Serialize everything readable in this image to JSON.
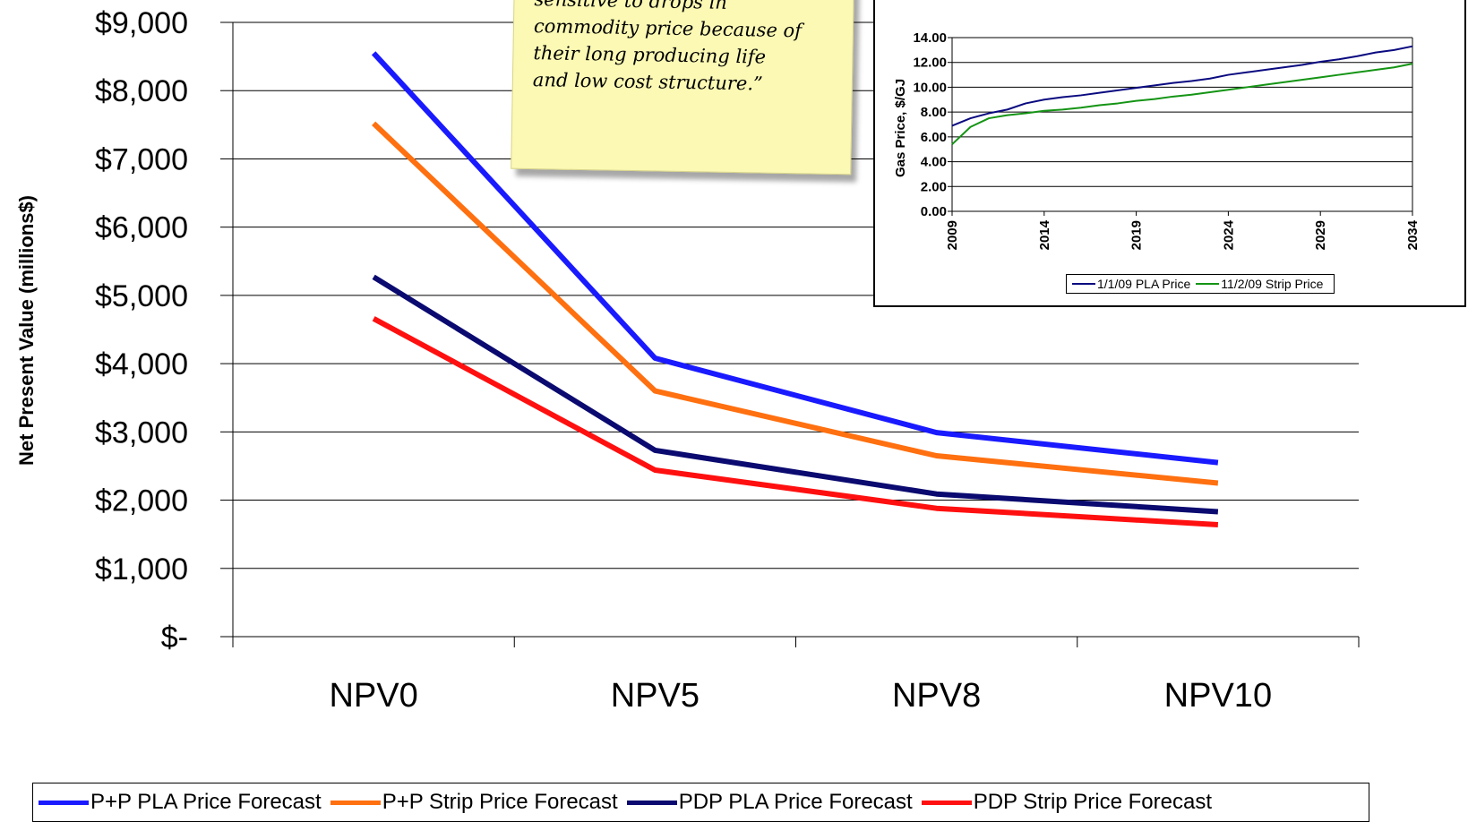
{
  "chart_data": [
    {
      "type": "line",
      "title": "",
      "xlabel": "",
      "ylabel": "Net Present Value (millions$)",
      "categories": [
        "NPV0",
        "NPV5",
        "NPV8",
        "NPV10"
      ],
      "y_ticks": [
        "$-",
        "$1,000",
        "$2,000",
        "$3,000",
        "$4,000",
        "$5,000",
        "$6,000",
        "$7,000",
        "$8,000",
        "$9,000"
      ],
      "ylim": [
        0,
        9000
      ],
      "grid": true,
      "legend_position": "bottom",
      "series": [
        {
          "name": "P+P PLA Price Forecast",
          "color": "#1a1aff",
          "values": [
            8550,
            4080,
            2990,
            2550
          ]
        },
        {
          "name": "P+P Strip Price Forecast",
          "color": "#ff7010",
          "values": [
            7520,
            3600,
            2650,
            2250
          ]
        },
        {
          "name": "PDP PLA Price Forecast",
          "color": "#0a0a70",
          "values": [
            5270,
            2730,
            2090,
            1830
          ]
        },
        {
          "name": "PDP Strip Price Forecast",
          "color": "#ff1010",
          "values": [
            4660,
            2440,
            1880,
            1640
          ]
        }
      ]
    },
    {
      "type": "line",
      "title": "",
      "xlabel": "",
      "ylabel": "Gas Price, $/GJ",
      "x_ticks": [
        "2009",
        "2014",
        "2019",
        "2024",
        "2029",
        "2034"
      ],
      "y_ticks": [
        "0.00",
        "2.00",
        "4.00",
        "6.00",
        "8.00",
        "10.00",
        "12.00",
        "14.00"
      ],
      "xlim": [
        2009,
        2034
      ],
      "ylim": [
        0,
        14
      ],
      "grid": true,
      "legend_position": "bottom",
      "series": [
        {
          "name": "1/1/09 PLA Price",
          "color": "#0a0a80",
          "x": [
            2009,
            2010,
            2011,
            2012,
            2013,
            2014,
            2015,
            2016,
            2017,
            2018,
            2019,
            2020,
            2021,
            2022,
            2023,
            2024,
            2025,
            2026,
            2027,
            2028,
            2029,
            2030,
            2031,
            2032,
            2033,
            2034
          ],
          "values": [
            6.9,
            7.5,
            7.9,
            8.2,
            8.7,
            9.0,
            9.2,
            9.35,
            9.55,
            9.75,
            9.95,
            10.15,
            10.35,
            10.5,
            10.7,
            11.0,
            11.2,
            11.4,
            11.6,
            11.8,
            12.05,
            12.25,
            12.5,
            12.8,
            13.0,
            13.3
          ]
        },
        {
          "name": "11/2/09 Strip Price",
          "color": "#149414",
          "x": [
            2009,
            2010,
            2011,
            2012,
            2013,
            2014,
            2015,
            2016,
            2017,
            2018,
            2019,
            2020,
            2021,
            2022,
            2023,
            2024,
            2025,
            2026,
            2027,
            2028,
            2029,
            2030,
            2031,
            2032,
            2033,
            2034
          ],
          "values": [
            5.4,
            6.8,
            7.5,
            7.75,
            7.9,
            8.1,
            8.2,
            8.35,
            8.55,
            8.7,
            8.9,
            9.05,
            9.25,
            9.4,
            9.6,
            9.8,
            10.0,
            10.2,
            10.4,
            10.6,
            10.8,
            11.0,
            11.2,
            11.4,
            11.6,
            11.9
          ]
        }
      ]
    }
  ],
  "note": {
    "lines": [
      "sensitive to drops in",
      "commodity price because of",
      "their long producing life",
      "and low cost structure.”"
    ]
  }
}
